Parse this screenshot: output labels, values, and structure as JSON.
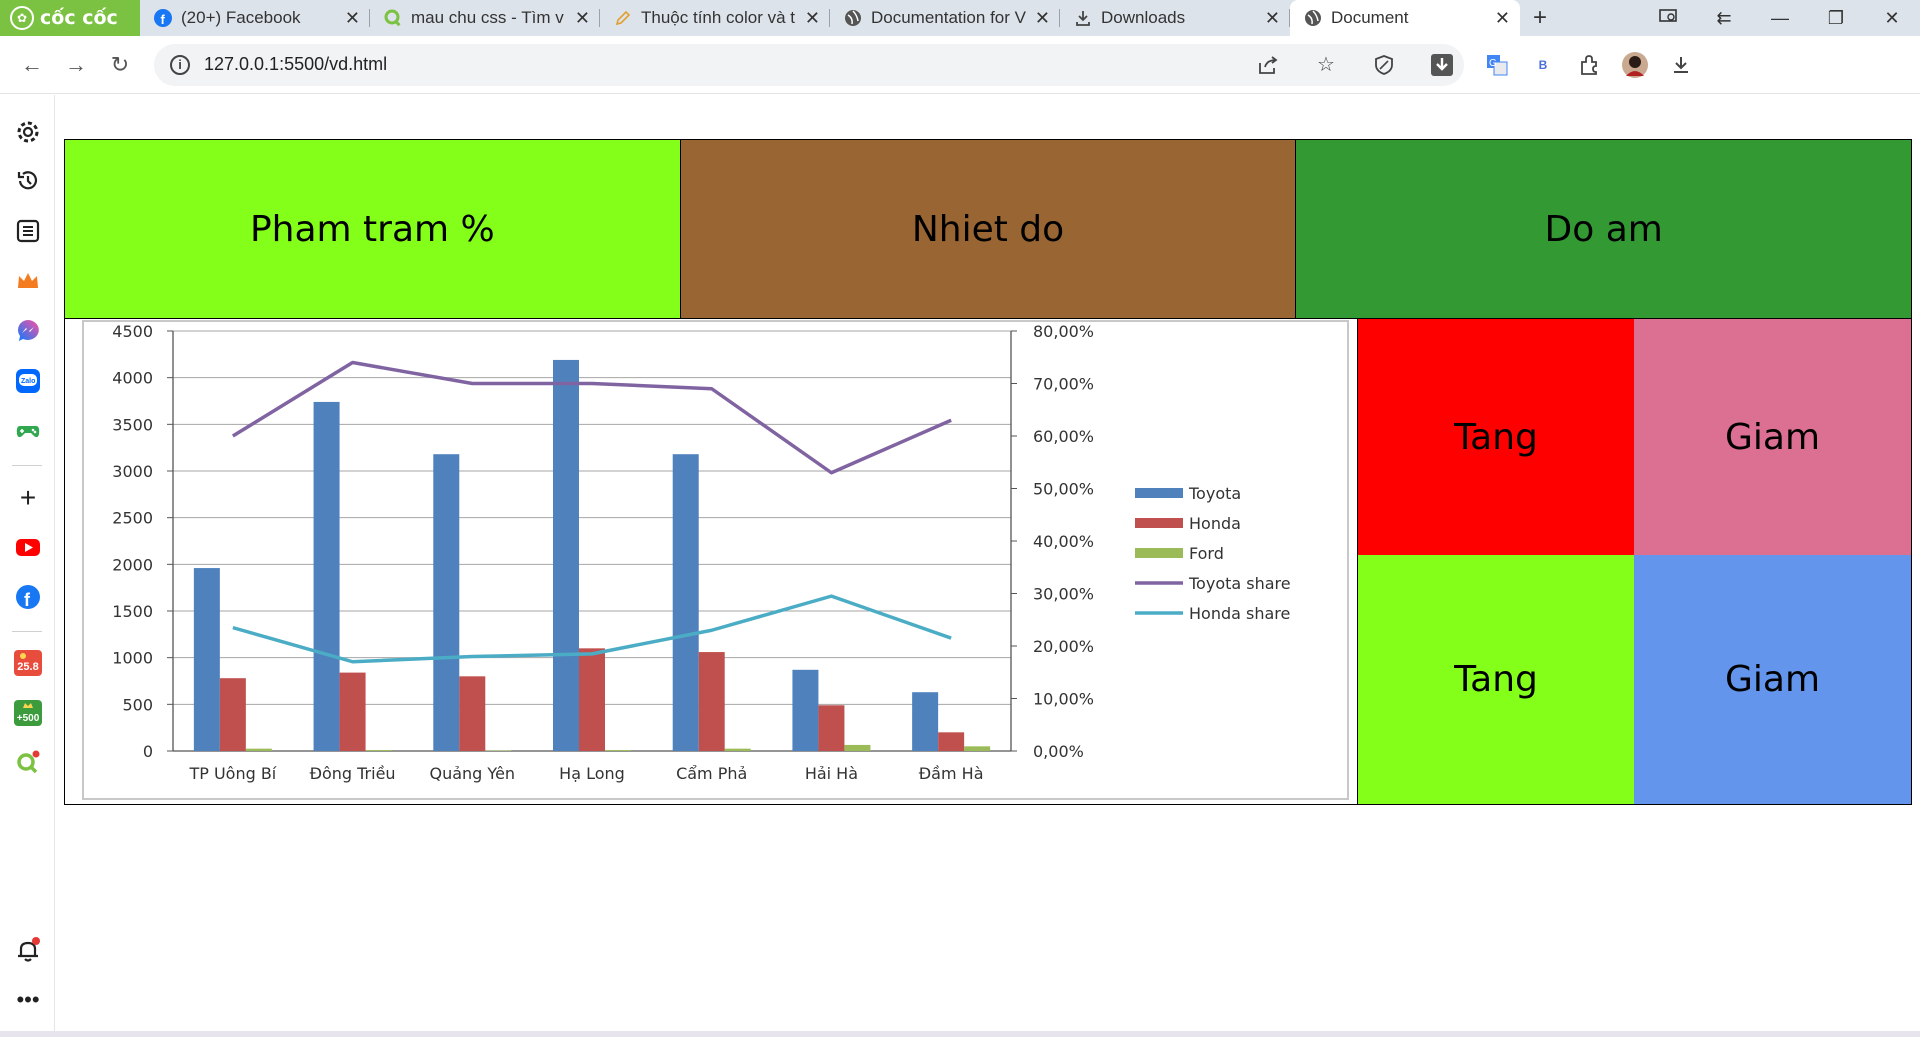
{
  "browser": {
    "brand": "cốc cốc",
    "tabs": [
      {
        "title": "(20+) Facebook",
        "icon": "facebook-icon"
      },
      {
        "title": "mau chu css - Tìm v",
        "icon": "coccoc-search-icon"
      },
      {
        "title": "Thuộc tính color và t",
        "icon": "pencil-icon"
      },
      {
        "title": "Documentation for V",
        "icon": "globe-icon"
      },
      {
        "title": "Downloads",
        "icon": "download-icon"
      },
      {
        "title": "Document",
        "icon": "globe-icon",
        "active": true
      }
    ],
    "url": "127.0.0.1:5500/vd.html",
    "translate_badge": "B"
  },
  "sidebar": {
    "badges": {
      "weather": "25.8",
      "points": "+500"
    }
  },
  "page": {
    "top_cells": [
      {
        "label": "Pham tram %",
        "color": "#84ff1a"
      },
      {
        "label": "Nhiet do",
        "color": "#996633"
      },
      {
        "label": "Do am",
        "color": "#339933"
      }
    ],
    "grid_cells": [
      {
        "label": "Tang",
        "color": "#ff0000"
      },
      {
        "label": "Giam",
        "color": "#db7093"
      },
      {
        "label": "Tang",
        "color": "#84ff1a"
      },
      {
        "label": "Giam",
        "color": "#6495ed"
      }
    ]
  },
  "chart_data": {
    "type": "bar",
    "categories": [
      "TP Uông Bí",
      "Đông Triều",
      "Quảng Yên",
      "Hạ Long",
      "Cẩm Phả",
      "Hải Hà",
      "Đầm Hà"
    ],
    "series": [
      {
        "name": "Toyota",
        "type": "bar",
        "axis": "left",
        "color": "#4f81bd",
        "values": [
          1960,
          3740,
          3180,
          4190,
          3180,
          870,
          630
        ]
      },
      {
        "name": "Honda",
        "type": "bar",
        "axis": "left",
        "color": "#c0504d",
        "values": [
          780,
          840,
          800,
          1100,
          1060,
          490,
          200
        ]
      },
      {
        "name": "Ford",
        "type": "bar",
        "axis": "left",
        "color": "#9bbb59",
        "values": [
          25,
          10,
          5,
          10,
          25,
          65,
          50
        ]
      },
      {
        "name": "Toyota share",
        "type": "line",
        "axis": "right",
        "color": "#8064a2",
        "values": [
          60.0,
          74.0,
          70.0,
          70.0,
          69.0,
          53.0,
          63.0
        ]
      },
      {
        "name": "Honda share",
        "type": "line",
        "axis": "right",
        "color": "#4bacc6",
        "values": [
          23.5,
          17.0,
          18.0,
          18.5,
          23.0,
          29.5,
          21.5
        ]
      }
    ],
    "ylim": [
      0,
      4500
    ],
    "yticks": [
      "0",
      "500",
      "1000",
      "1500",
      "2000",
      "2500",
      "3000",
      "3500",
      "4000",
      "4500"
    ],
    "y2lim": [
      0,
      80
    ],
    "y2ticks": [
      "0,00%",
      "10,00%",
      "20,00%",
      "30,00%",
      "40,00%",
      "50,00%",
      "60,00%",
      "70,00%",
      "80,00%"
    ],
    "grid": true,
    "legend": "right"
  }
}
